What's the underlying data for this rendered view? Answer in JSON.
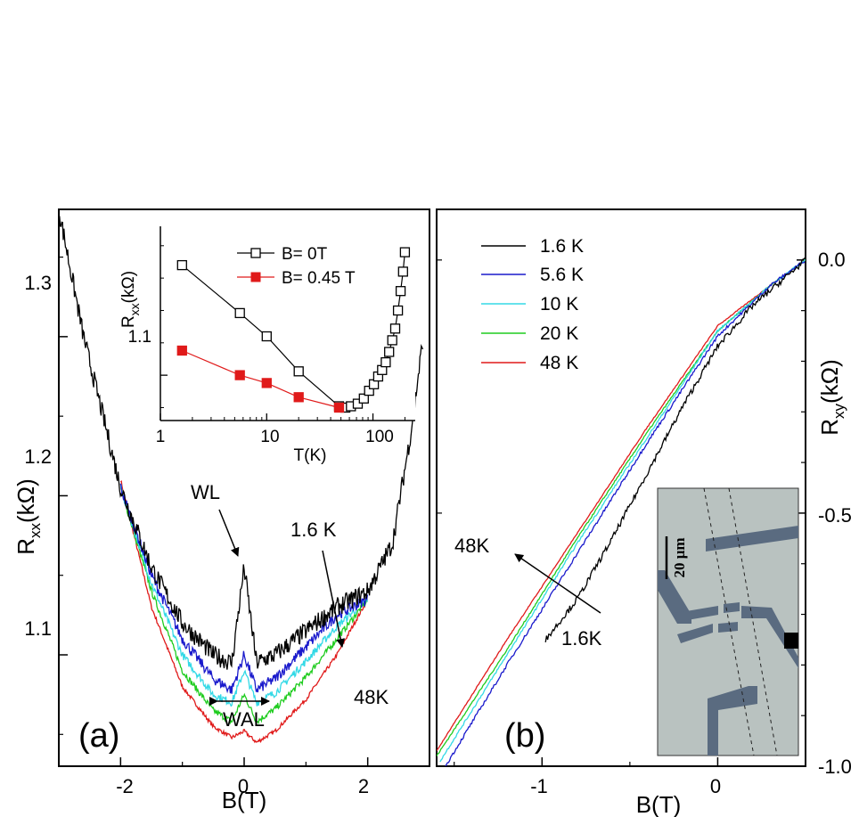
{
  "colors": {
    "1.6 K": "#000000",
    "5.6 K": "#1a1acc",
    "10 K": "#33d9e6",
    "20 K": "#1fcc1f",
    "48 K": "#e01a1a",
    "B=0": "#000000",
    "B=0.45": "#e01a1a"
  },
  "panel_a": {
    "label": "(a)",
    "xlabel": "B(T)",
    "ylabel_main": "R",
    "ylabel_sub": "xx",
    "ylabel_unit": "(kΩ)",
    "xticks": [
      "-2",
      "0",
      "2"
    ],
    "yticks": [
      "1.1",
      "1.2",
      "1.3"
    ],
    "annotations": {
      "wl": "WL",
      "wal": "WAL",
      "temp_low": "1.6 K",
      "temp_high": "48K"
    }
  },
  "inset_a": {
    "ylabel_main": "R",
    "ylabel_sub": "xx",
    "ylabel_unit": "(kΩ)",
    "ytick": "1.1",
    "xlabel": "T(K)",
    "xticks": [
      "1",
      "10",
      "100"
    ],
    "legend": [
      "B= 0T",
      "B= 0.45 T"
    ]
  },
  "panel_b": {
    "label": "(b)",
    "xlabel": "B(T)",
    "ylabel_main": "R",
    "ylabel_sub": "xy",
    "ylabel_unit": "(kΩ)",
    "xticks": [
      "-1",
      "0"
    ],
    "yticks": [
      "0.0",
      "-0.5",
      "-1.0"
    ],
    "legend": [
      "1.6 K",
      "5.6 K",
      "10 K",
      "20 K",
      "48 K"
    ],
    "annotations": {
      "temp_high": "48K",
      "temp_low": "1.6K"
    },
    "photo_scale": "20 μm"
  },
  "chart_data": [
    {
      "type": "line",
      "panel": "a",
      "xlabel": "B(T)",
      "ylabel": "Rxx(kΩ)",
      "xlim": [
        -3.0,
        3.0
      ],
      "ylim": [
        1.03,
        1.38
      ],
      "series": [
        {
          "name": "1.6 K",
          "x": [
            -3.0,
            -2.6,
            -2.0,
            -1.5,
            -1.0,
            -0.5,
            -0.2,
            0.0,
            0.2,
            0.5,
            1.0,
            1.5,
            2.0,
            2.4,
            2.7,
            2.9
          ],
          "y": [
            1.38,
            1.3,
            1.205,
            1.155,
            1.12,
            1.1,
            1.095,
            1.155,
            1.095,
            1.1,
            1.115,
            1.13,
            1.14,
            1.17,
            1.24,
            1.3
          ]
        },
        {
          "name": "5.6 K",
          "x": [
            -2.0,
            -1.5,
            -1.0,
            -0.5,
            -0.2,
            0.0,
            0.2,
            0.5,
            1.0,
            1.5,
            2.0
          ],
          "y": [
            1.205,
            1.15,
            1.11,
            1.085,
            1.078,
            1.1,
            1.078,
            1.085,
            1.105,
            1.125,
            1.135
          ]
        },
        {
          "name": "10 K",
          "x": [
            -2.0,
            -1.5,
            -1.0,
            -0.5,
            -0.2,
            0.0,
            0.2,
            0.5,
            1.0,
            1.5,
            2.0
          ],
          "y": [
            1.205,
            1.145,
            1.1,
            1.075,
            1.07,
            1.09,
            1.07,
            1.076,
            1.096,
            1.118,
            1.135
          ]
        },
        {
          "name": "20 K",
          "x": [
            -2.0,
            -1.5,
            -1.0,
            -0.5,
            -0.2,
            0.0,
            0.2,
            0.5,
            1.0,
            1.5,
            2.0
          ],
          "y": [
            1.205,
            1.14,
            1.09,
            1.065,
            1.058,
            1.075,
            1.058,
            1.066,
            1.086,
            1.11,
            1.135
          ]
        },
        {
          "name": "48 K",
          "x": [
            -2.0,
            -1.5,
            -1.0,
            -0.5,
            -0.2,
            0.0,
            0.2,
            0.5,
            1.0,
            1.5,
            2.0
          ],
          "y": [
            1.21,
            1.13,
            1.08,
            1.055,
            1.048,
            1.052,
            1.045,
            1.052,
            1.072,
            1.1,
            1.135
          ]
        }
      ]
    },
    {
      "type": "scatter",
      "panel": "a-inset",
      "xlabel": "T(K)",
      "ylabel": "Rxx(kΩ)",
      "xscale": "log",
      "xlim": [
        1,
        250
      ],
      "ylim": [
        1.065,
        1.215
      ],
      "series": [
        {
          "name": "B= 0T",
          "x": [
            1.6,
            5.6,
            10,
            20,
            48,
            55,
            62,
            72,
            82,
            92,
            102,
            112,
            122,
            132,
            142,
            152,
            162,
            172,
            182,
            192,
            200
          ],
          "y": [
            1.185,
            1.148,
            1.13,
            1.103,
            1.076,
            1.075,
            1.076,
            1.078,
            1.082,
            1.088,
            1.093,
            1.099,
            1.104,
            1.11,
            1.118,
            1.127,
            1.136,
            1.15,
            1.165,
            1.18,
            1.195
          ]
        },
        {
          "name": "B= 0.45 T",
          "x": [
            1.6,
            5.6,
            10,
            20,
            48
          ],
          "y": [
            1.119,
            1.1,
            1.094,
            1.083,
            1.075
          ]
        }
      ]
    },
    {
      "type": "line",
      "panel": "b",
      "xlabel": "B(T)",
      "ylabel": "Rxy(kΩ)",
      "xlim": [
        -1.6,
        0.5
      ],
      "ylim": [
        -1.0,
        0.1
      ],
      "series": [
        {
          "name": "1.6 K",
          "x": [
            -0.98,
            -0.8,
            -0.6,
            -0.4,
            -0.2,
            0.0,
            0.2,
            0.4,
            0.5
          ],
          "y": [
            -0.75,
            -0.67,
            -0.55,
            -0.42,
            -0.29,
            -0.17,
            -0.09,
            -0.03,
            0.0
          ]
        },
        {
          "name": "5.6 K",
          "x": [
            -1.55,
            -1.2,
            -0.8,
            -0.4,
            0.0,
            0.3,
            0.5
          ],
          "y": [
            -1.0,
            -0.8,
            -0.58,
            -0.36,
            -0.15,
            -0.05,
            0.0
          ]
        },
        {
          "name": "10 K",
          "x": [
            -1.58,
            -1.2,
            -0.8,
            -0.4,
            0.0,
            0.3,
            0.5
          ],
          "y": [
            -0.99,
            -0.78,
            -0.56,
            -0.35,
            -0.14,
            -0.05,
            0.0
          ]
        },
        {
          "name": "20 K",
          "x": [
            -1.6,
            -1.2,
            -0.8,
            -0.4,
            0.0,
            0.3,
            0.5
          ],
          "y": [
            -0.98,
            -0.77,
            -0.55,
            -0.34,
            -0.14,
            -0.05,
            0.0
          ]
        },
        {
          "name": "48 K",
          "x": [
            -1.6,
            -1.2,
            -0.8,
            -0.4,
            0.0,
            0.3,
            0.5
          ],
          "y": [
            -0.97,
            -0.75,
            -0.54,
            -0.33,
            -0.13,
            -0.05,
            0.0
          ]
        }
      ]
    }
  ]
}
